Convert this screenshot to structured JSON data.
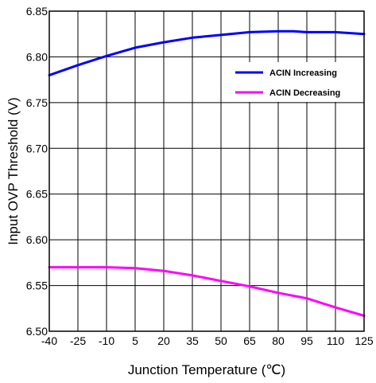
{
  "chart_data": {
    "type": "line",
    "xlabel": "Junction Temperature (℃)",
    "ylabel": "Input OVP Threshold (V)",
    "xlim": [
      -40,
      125
    ],
    "ylim": [
      6.5,
      6.85
    ],
    "x_ticks": [
      -40,
      -25,
      -10,
      5,
      20,
      35,
      50,
      65,
      80,
      95,
      110,
      125
    ],
    "x_tick_labels": [
      "-40",
      "-25",
      "-10",
      "5",
      "20",
      "35",
      "50",
      "65",
      "80",
      "95",
      "110",
      "125"
    ],
    "y_ticks": [
      6.5,
      6.55,
      6.6,
      6.65,
      6.7,
      6.75,
      6.8,
      6.85
    ],
    "y_tick_labels": [
      "6.50",
      "6.55",
      "6.60",
      "6.65",
      "6.70",
      "6.75",
      "6.80",
      "6.85"
    ],
    "grid": true,
    "legend_position": "top-right",
    "series": [
      {
        "name": "ACIN Increasing",
        "color": "#0000ff",
        "x": [
          -40,
          -25,
          -10,
          5,
          20,
          35,
          50,
          65,
          80,
          88,
          95,
          110,
          125
        ],
        "y": [
          6.78,
          6.791,
          6.801,
          6.81,
          6.816,
          6.821,
          6.824,
          6.827,
          6.828,
          6.828,
          6.827,
          6.827,
          6.825
        ]
      },
      {
        "name": "ACIN Decreasing",
        "color": "#ff00ff",
        "x": [
          -40,
          -25,
          -10,
          5,
          20,
          35,
          50,
          65,
          80,
          95,
          110,
          125
        ],
        "y": [
          6.57,
          6.57,
          6.57,
          6.569,
          6.566,
          6.561,
          6.555,
          6.549,
          6.542,
          6.536,
          6.526,
          6.517
        ]
      }
    ]
  }
}
